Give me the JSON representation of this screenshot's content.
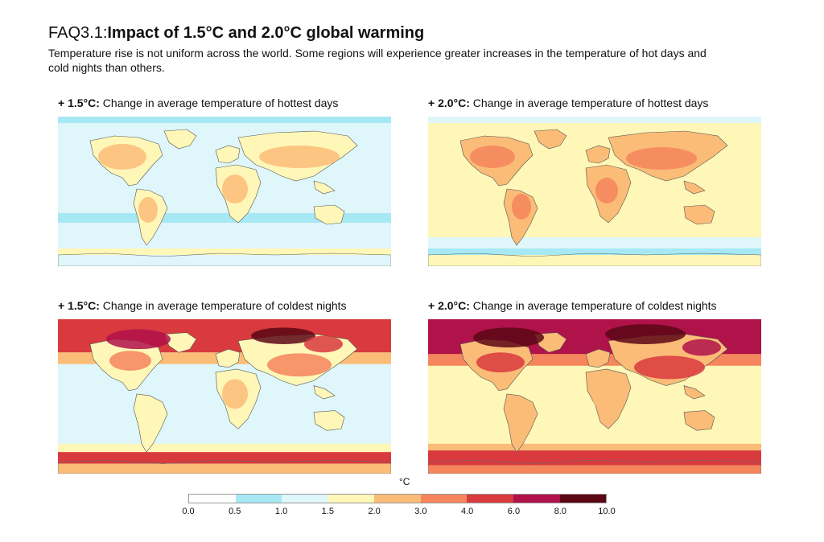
{
  "header": {
    "prefix": "FAQ3.1:",
    "title": "Impact of 1.5°C and 2.0°C global warming",
    "subtitle": "Temperature rise is not uniform across the world. Some regions will experience greater increases in the temperature of hot days and cold nights than others."
  },
  "panels": [
    {
      "id": "p1",
      "scenario": "+ 1.5°C:",
      "description": "Change in average temperature of hottest days",
      "variable": "hottest-days",
      "warming": "1.5"
    },
    {
      "id": "p2",
      "scenario": "+ 2.0°C:",
      "description": "Change in average temperature of hottest days",
      "variable": "hottest-days",
      "warming": "2.0"
    },
    {
      "id": "p3",
      "scenario": "+ 1.5°C:",
      "description": "Change in average temperature of coldest nights",
      "variable": "coldest-nights",
      "warming": "1.5"
    },
    {
      "id": "p4",
      "scenario": "+ 2.0°C:",
      "description": "Change in average temperature of coldest nights",
      "variable": "coldest-nights",
      "warming": "2.0"
    }
  ],
  "legend": {
    "unit": "°C",
    "ticks": [
      "0.0",
      "0.5",
      "1.0",
      "1.5",
      "2.0",
      "3.0",
      "4.0",
      "6.0",
      "8.0",
      "10.0"
    ],
    "colors": [
      "#ffffff",
      "#a6e9f5",
      "#dff6fa",
      "#fff7b8",
      "#fbbc77",
      "#f5855c",
      "#d93a3e",
      "#b0124a",
      "#5c0715"
    ]
  }
}
